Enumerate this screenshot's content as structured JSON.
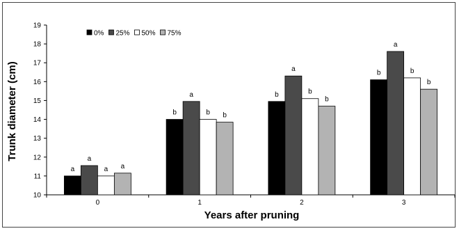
{
  "chart_data": {
    "type": "bar",
    "xlabel": "Years after pruning",
    "ylabel": "Trunk diameter (cm)",
    "ylim": [
      10,
      19
    ],
    "yticks": [
      10,
      11,
      12,
      13,
      14,
      15,
      16,
      17,
      18,
      19
    ],
    "grid": false,
    "legend_position": "top-left",
    "categories": [
      "0",
      "1",
      "2",
      "3"
    ],
    "series": [
      {
        "name": "0%",
        "color": "#000000",
        "values": [
          11.0,
          14.0,
          14.95,
          16.1
        ],
        "labels": [
          "a",
          "b",
          "b",
          "b"
        ]
      },
      {
        "name": "25%",
        "color": "#4a4a4a",
        "values": [
          11.55,
          14.95,
          16.3,
          17.6
        ],
        "labels": [
          "a",
          "a",
          "a",
          "a"
        ]
      },
      {
        "name": "50%",
        "color": "#ffffff",
        "values": [
          11.0,
          14.0,
          15.1,
          16.2
        ],
        "labels": [
          "a",
          "b",
          "b",
          "b"
        ]
      },
      {
        "name": "75%",
        "color": "#b3b3b3",
        "values": [
          11.15,
          13.85,
          14.7,
          15.6
        ],
        "labels": [
          "a",
          "b",
          "b",
          "b"
        ]
      }
    ]
  }
}
